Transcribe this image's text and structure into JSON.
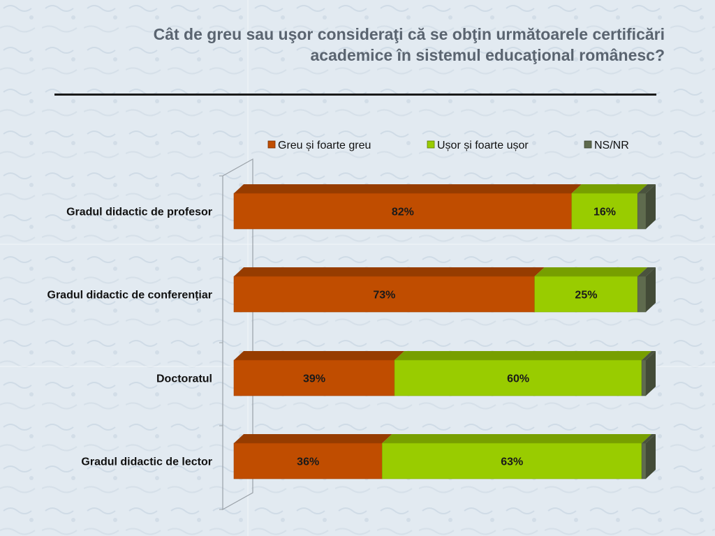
{
  "slide": {
    "title_line1": "Cât de greu sau uşor consideraţi că se obţin următoarele certificări",
    "title_line2": "academice în sistemul educaţional românesc?"
  },
  "chart_data": {
    "type": "bar",
    "orientation": "horizontal",
    "stacked": true,
    "three_d": true,
    "categories": [
      "Gradul didactic de profesor",
      "Gradul didactic de conferențiar",
      "Doctoratul",
      "Gradul didactic de lector"
    ],
    "series": [
      {
        "name": "Greu și foarte greu",
        "values": [
          82,
          73,
          39,
          36
        ],
        "labels": [
          "82%",
          "73%",
          "39%",
          "36%"
        ],
        "color": "#c04d00"
      },
      {
        "name": "Ușor și foarte ușor",
        "values": [
          16,
          25,
          60,
          63
        ],
        "labels": [
          "16%",
          "25%",
          "60%",
          "63%"
        ],
        "color": "#99cc00"
      },
      {
        "name": "NS/NR",
        "values": [
          2,
          2,
          1,
          1
        ],
        "labels": [
          "",
          "",
          "",
          ""
        ],
        "color": "#5f6b4e"
      }
    ],
    "xlim": [
      0,
      100
    ],
    "grid": false,
    "legend": "top"
  }
}
